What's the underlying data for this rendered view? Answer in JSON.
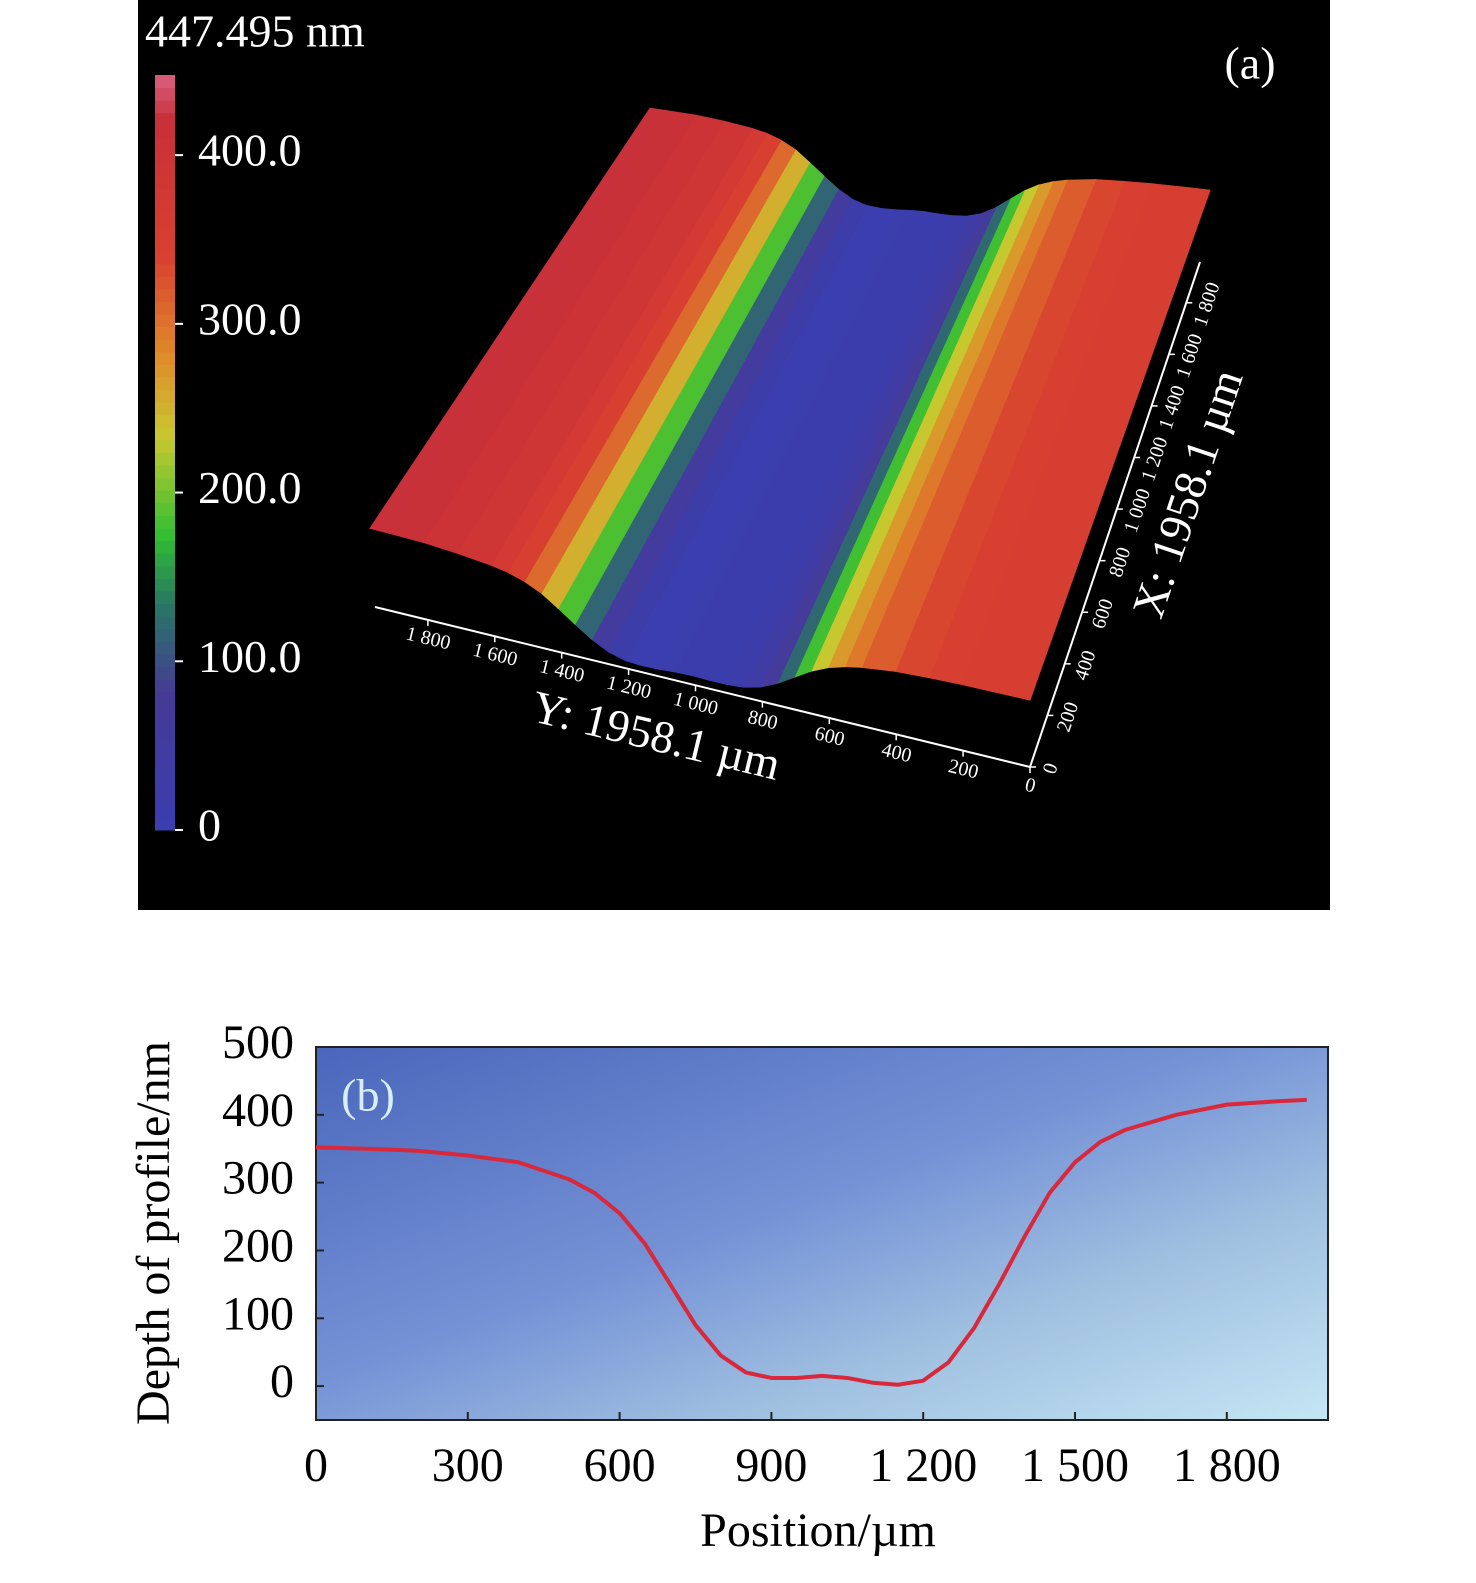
{
  "chart_data": [
    {
      "type": "surface",
      "label": "(a)",
      "clim_label": "447.495 nm",
      "clim": [
        0,
        447.495
      ],
      "cticks": [
        0,
        {
          "value": 100,
          "label": "100.0"
        },
        {
          "value": 200,
          "label": "200.0"
        },
        {
          "value": 300,
          "label": "300.0"
        },
        {
          "value": 400,
          "label": "400.0"
        }
      ],
      "xlabel": "X: 1958.1 µm",
      "ylabel": "Y: 1958.1 µm",
      "xlim": [
        0,
        1958.1
      ],
      "ylim": [
        0,
        1958.1
      ],
      "xticks": [
        0,
        200,
        400,
        600,
        800,
        {
          "value": 1000,
          "label": "1 000"
        },
        {
          "value": 1200,
          "label": "1 200"
        },
        {
          "value": 1400,
          "label": "1 400"
        },
        {
          "value": 1600,
          "label": "1 600"
        },
        {
          "value": 1800,
          "label": "1 800"
        }
      ],
      "yticks": [
        0,
        200,
        400,
        600,
        800,
        {
          "value": 1000,
          "label": "1 000"
        },
        {
          "value": 1200,
          "label": "1 200"
        },
        {
          "value": 1400,
          "label": "1 400"
        },
        {
          "value": 1600,
          "label": "1 600"
        },
        {
          "value": 1800,
          "label": "1 800"
        }
      ],
      "y": [
        0,
        100,
        200,
        300,
        400,
        500,
        550,
        600,
        650,
        700,
        750,
        800,
        850,
        900,
        950,
        1000,
        1050,
        1100,
        1150,
        1200,
        1250,
        1300,
        1350,
        1400,
        1450,
        1500,
        1550,
        1600,
        1700,
        1800,
        1900,
        1958
      ],
      "values": [
        352,
        350,
        347,
        340,
        330,
        305,
        285,
        255,
        210,
        150,
        90,
        45,
        20,
        12,
        12,
        15,
        12,
        5,
        2,
        8,
        35,
        85,
        150,
        220,
        285,
        330,
        360,
        378,
        400,
        415,
        420,
        422
      ]
    },
    {
      "type": "line",
      "label": "(b)",
      "xlabel": "Position/µm",
      "ylabel": "Depth of profile/nm",
      "xlim": [
        0,
        2000
      ],
      "ylim": [
        -50,
        500
      ],
      "xticks": [
        0,
        300,
        600,
        900,
        {
          "value": 1200,
          "label": "1 200"
        },
        {
          "value": 1500,
          "label": "1 500"
        },
        {
          "value": 1800,
          "label": "1 800"
        }
      ],
      "yticks": [
        0,
        100,
        200,
        300,
        400,
        500
      ],
      "color": "#d8283c",
      "x": [
        0,
        100,
        200,
        300,
        400,
        500,
        550,
        600,
        650,
        700,
        750,
        800,
        850,
        900,
        950,
        1000,
        1050,
        1100,
        1150,
        1200,
        1250,
        1300,
        1350,
        1400,
        1450,
        1500,
        1550,
        1600,
        1700,
        1800,
        1900,
        1958
      ],
      "values": [
        352,
        350,
        347,
        340,
        330,
        305,
        285,
        255,
        210,
        150,
        90,
        45,
        20,
        12,
        12,
        15,
        12,
        5,
        2,
        8,
        35,
        85,
        150,
        220,
        285,
        330,
        360,
        378,
        400,
        415,
        420,
        422
      ]
    }
  ]
}
